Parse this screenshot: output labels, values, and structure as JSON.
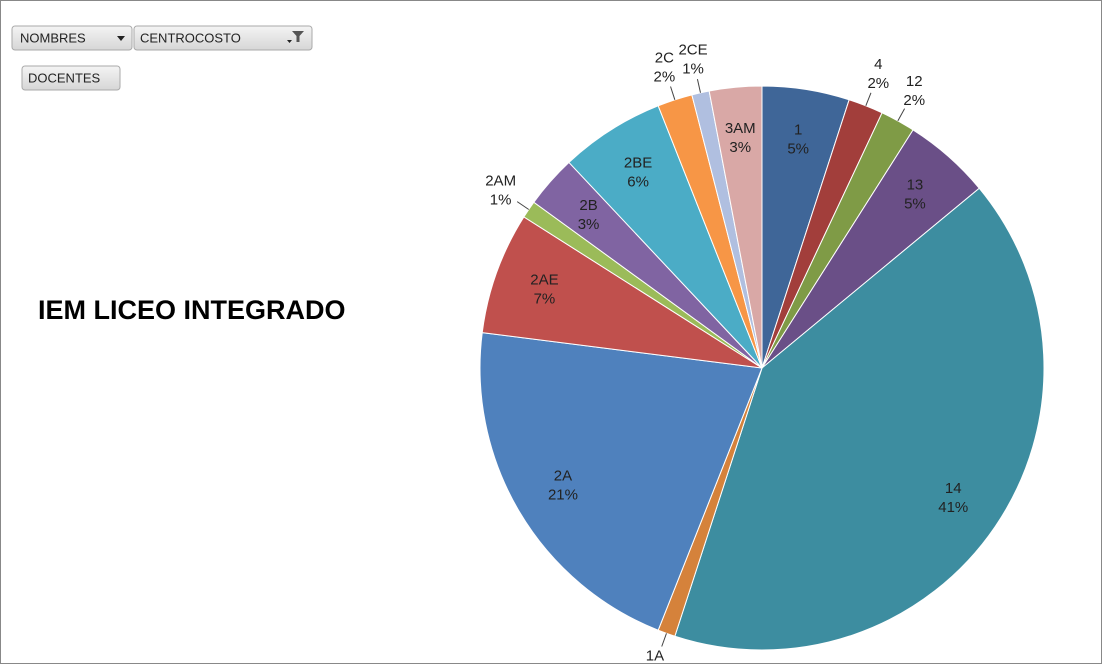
{
  "fields": [
    "NOMBRES",
    "CENTROCOSTO",
    "DOCENTES"
  ],
  "chart_data": {
    "type": "pie",
    "title": "IEM LICEO INTEGRADO",
    "categories": [
      "1",
      "4",
      "12",
      "13",
      "14",
      "1A",
      "2A",
      "2AE",
      "2AM",
      "2B",
      "2BE",
      "2C",
      "2CE",
      "3AM"
    ],
    "values": [
      5,
      2,
      2,
      5,
      41,
      1,
      21,
      7,
      1,
      3,
      6,
      2,
      1,
      3
    ],
    "value_labels": [
      "5%",
      "2%",
      "2%",
      "5%",
      "41%",
      "1%",
      "21%",
      "7%",
      "1%",
      "3%",
      "6%",
      "2%",
      "1%",
      "3%"
    ],
    "colors": [
      "#3f6698",
      "#a23e3b",
      "#7f9b46",
      "#6a4f87",
      "#3d8da0",
      "#d5823b",
      "#4f81bd",
      "#c0504d",
      "#9bbb59",
      "#8064a2",
      "#4bacc6",
      "#f79646",
      "#b0bfe0",
      "#d9a8a6"
    ]
  }
}
